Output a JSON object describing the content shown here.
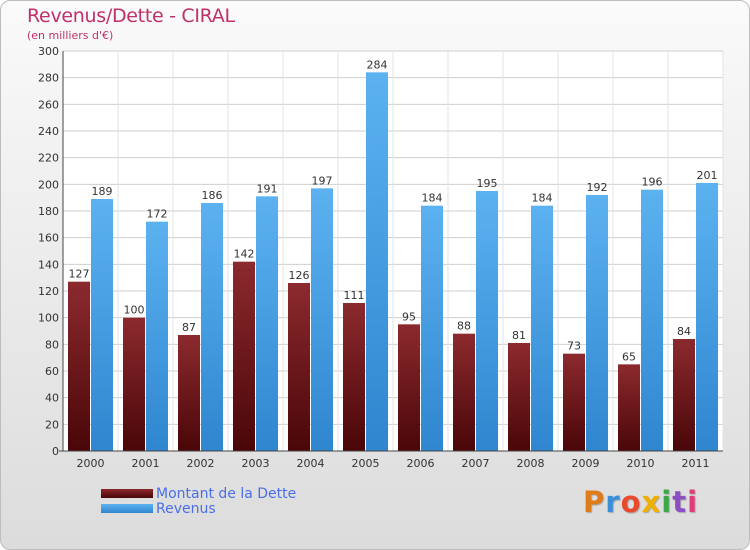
{
  "title": "Revenus/Dette - CIRAL",
  "subtitle": "(en milliers d'€)",
  "logo": {
    "text": "Proxiti",
    "letter_colors": [
      "#e07b1a",
      "#3a8fd8",
      "#e84a2e",
      "#f0b000",
      "#3aa845",
      "#8c4ec2",
      "#e23b7a"
    ]
  },
  "colors": {
    "dette": "#7a1418",
    "revenus": "#4aa3e8",
    "title": "#c0306b",
    "legend_text": "#4a6ee6"
  },
  "chart_data": {
    "type": "bar",
    "categories": [
      "2000",
      "2001",
      "2002",
      "2003",
      "2004",
      "2005",
      "2006",
      "2007",
      "2008",
      "2009",
      "2010",
      "2011"
    ],
    "series": [
      {
        "name": "Montant de la Dette",
        "values": [
          127,
          100,
          87,
          142,
          126,
          111,
          95,
          88,
          81,
          73,
          65,
          84
        ]
      },
      {
        "name": "Revenus",
        "values": [
          189,
          172,
          186,
          191,
          197,
          284,
          184,
          195,
          184,
          192,
          196,
          201
        ]
      }
    ],
    "yticks": [
      0,
      20,
      40,
      60,
      80,
      100,
      120,
      140,
      160,
      180,
      200,
      220,
      240,
      260,
      280,
      300
    ],
    "ylim": [
      0,
      300
    ],
    "grid": true,
    "legend_position": "bottom-left"
  }
}
